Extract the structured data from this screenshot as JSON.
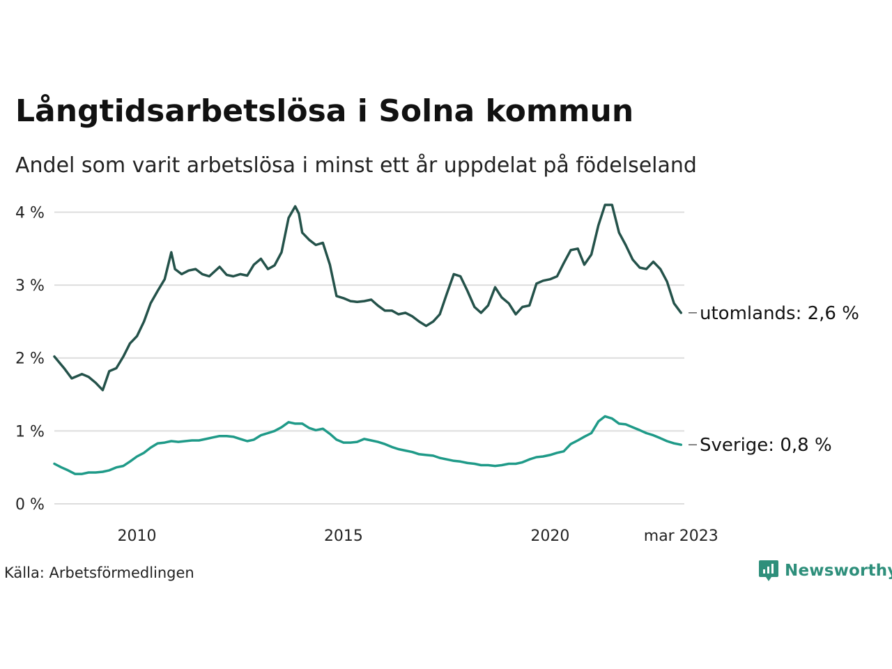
{
  "title": "Långtidsarbetslösa i Solna kommun",
  "subtitle": "Andel som varit arbetslösa i minst ett år uppdelat på födelseland",
  "source": "Källa: Arbetsförmedlingen",
  "brand": "Newsworthy",
  "colors": {
    "dark_series": "#24524a",
    "light_series": "#1f9a88",
    "grid": "#dddddd",
    "brand": "#2e8f7b"
  },
  "chart_data": {
    "type": "line",
    "x_unit": "year",
    "xlim": [
      2008.0,
      2023.25
    ],
    "ylim": [
      0,
      4.1
    ],
    "y_ticks": [
      0,
      1,
      2,
      3,
      4
    ],
    "y_tick_labels": [
      "0 %",
      "1 %",
      "2 %",
      "3 %",
      "4 %"
    ],
    "x_ticks": [
      2010,
      2015,
      2020,
      2023.17
    ],
    "x_tick_labels": [
      "2010",
      "2015",
      "2020",
      "mar 2023"
    ],
    "grid": true,
    "series": [
      {
        "name": "utomlands",
        "end_label": "utomlands: 2,6 %",
        "color": "#24524a",
        "points": [
          [
            2008.0,
            2.02
          ],
          [
            2008.25,
            1.85
          ],
          [
            2008.42,
            1.72
          ],
          [
            2008.67,
            1.78
          ],
          [
            2008.83,
            1.74
          ],
          [
            2009.0,
            1.66
          ],
          [
            2009.17,
            1.56
          ],
          [
            2009.33,
            1.82
          ],
          [
            2009.5,
            1.86
          ],
          [
            2009.67,
            2.02
          ],
          [
            2009.83,
            2.2
          ],
          [
            2010.0,
            2.3
          ],
          [
            2010.17,
            2.5
          ],
          [
            2010.33,
            2.75
          ],
          [
            2010.5,
            2.92
          ],
          [
            2010.67,
            3.08
          ],
          [
            2010.83,
            3.45
          ],
          [
            2010.92,
            3.22
          ],
          [
            2011.08,
            3.15
          ],
          [
            2011.25,
            3.2
          ],
          [
            2011.42,
            3.22
          ],
          [
            2011.58,
            3.15
          ],
          [
            2011.75,
            3.12
          ],
          [
            2012.0,
            3.25
          ],
          [
            2012.17,
            3.14
          ],
          [
            2012.33,
            3.12
          ],
          [
            2012.5,
            3.15
          ],
          [
            2012.67,
            3.13
          ],
          [
            2012.83,
            3.28
          ],
          [
            2013.0,
            3.36
          ],
          [
            2013.17,
            3.22
          ],
          [
            2013.33,
            3.27
          ],
          [
            2013.5,
            3.45
          ],
          [
            2013.67,
            3.92
          ],
          [
            2013.83,
            4.08
          ],
          [
            2013.92,
            3.98
          ],
          [
            2014.0,
            3.72
          ],
          [
            2014.17,
            3.62
          ],
          [
            2014.33,
            3.55
          ],
          [
            2014.5,
            3.58
          ],
          [
            2014.67,
            3.28
          ],
          [
            2014.83,
            2.85
          ],
          [
            2015.0,
            2.82
          ],
          [
            2015.17,
            2.78
          ],
          [
            2015.33,
            2.77
          ],
          [
            2015.5,
            2.78
          ],
          [
            2015.67,
            2.8
          ],
          [
            2015.83,
            2.72
          ],
          [
            2016.0,
            2.65
          ],
          [
            2016.17,
            2.65
          ],
          [
            2016.33,
            2.6
          ],
          [
            2016.5,
            2.62
          ],
          [
            2016.67,
            2.57
          ],
          [
            2016.83,
            2.5
          ],
          [
            2017.0,
            2.44
          ],
          [
            2017.17,
            2.5
          ],
          [
            2017.33,
            2.6
          ],
          [
            2017.5,
            2.88
          ],
          [
            2017.67,
            3.15
          ],
          [
            2017.83,
            3.12
          ],
          [
            2018.0,
            2.92
          ],
          [
            2018.17,
            2.7
          ],
          [
            2018.33,
            2.62
          ],
          [
            2018.5,
            2.72
          ],
          [
            2018.67,
            2.97
          ],
          [
            2018.83,
            2.83
          ],
          [
            2019.0,
            2.75
          ],
          [
            2019.17,
            2.6
          ],
          [
            2019.33,
            2.7
          ],
          [
            2019.5,
            2.72
          ],
          [
            2019.67,
            3.02
          ],
          [
            2019.83,
            3.06
          ],
          [
            2020.0,
            3.08
          ],
          [
            2020.17,
            3.12
          ],
          [
            2020.33,
            3.3
          ],
          [
            2020.5,
            3.48
          ],
          [
            2020.67,
            3.5
          ],
          [
            2020.83,
            3.28
          ],
          [
            2021.0,
            3.42
          ],
          [
            2021.17,
            3.82
          ],
          [
            2021.33,
            4.1
          ],
          [
            2021.5,
            4.1
          ],
          [
            2021.67,
            3.72
          ],
          [
            2021.83,
            3.55
          ],
          [
            2022.0,
            3.35
          ],
          [
            2022.17,
            3.24
          ],
          [
            2022.33,
            3.22
          ],
          [
            2022.5,
            3.32
          ],
          [
            2022.67,
            3.22
          ],
          [
            2022.83,
            3.05
          ],
          [
            2023.0,
            2.75
          ],
          [
            2023.17,
            2.62
          ]
        ]
      },
      {
        "name": "Sverige",
        "end_label": "Sverige: 0,8 %",
        "color": "#1f9a88",
        "points": [
          [
            2008.0,
            0.55
          ],
          [
            2008.17,
            0.5
          ],
          [
            2008.33,
            0.46
          ],
          [
            2008.5,
            0.41
          ],
          [
            2008.67,
            0.41
          ],
          [
            2008.83,
            0.43
          ],
          [
            2009.0,
            0.43
          ],
          [
            2009.17,
            0.44
          ],
          [
            2009.33,
            0.46
          ],
          [
            2009.5,
            0.5
          ],
          [
            2009.67,
            0.52
          ],
          [
            2009.83,
            0.58
          ],
          [
            2010.0,
            0.65
          ],
          [
            2010.17,
            0.7
          ],
          [
            2010.33,
            0.77
          ],
          [
            2010.5,
            0.83
          ],
          [
            2010.67,
            0.84
          ],
          [
            2010.83,
            0.86
          ],
          [
            2011.0,
            0.85
          ],
          [
            2011.17,
            0.86
          ],
          [
            2011.33,
            0.87
          ],
          [
            2011.5,
            0.87
          ],
          [
            2011.67,
            0.89
          ],
          [
            2011.83,
            0.91
          ],
          [
            2012.0,
            0.93
          ],
          [
            2012.17,
            0.93
          ],
          [
            2012.33,
            0.92
          ],
          [
            2012.5,
            0.89
          ],
          [
            2012.67,
            0.86
          ],
          [
            2012.83,
            0.88
          ],
          [
            2013.0,
            0.94
          ],
          [
            2013.17,
            0.97
          ],
          [
            2013.33,
            1.0
          ],
          [
            2013.5,
            1.05
          ],
          [
            2013.67,
            1.12
          ],
          [
            2013.83,
            1.1
          ],
          [
            2014.0,
            1.1
          ],
          [
            2014.17,
            1.04
          ],
          [
            2014.33,
            1.01
          ],
          [
            2014.5,
            1.03
          ],
          [
            2014.67,
            0.96
          ],
          [
            2014.83,
            0.88
          ],
          [
            2015.0,
            0.84
          ],
          [
            2015.17,
            0.84
          ],
          [
            2015.33,
            0.85
          ],
          [
            2015.5,
            0.89
          ],
          [
            2015.67,
            0.87
          ],
          [
            2015.83,
            0.85
          ],
          [
            2016.0,
            0.82
          ],
          [
            2016.17,
            0.78
          ],
          [
            2016.33,
            0.75
          ],
          [
            2016.5,
            0.73
          ],
          [
            2016.67,
            0.71
          ],
          [
            2016.83,
            0.68
          ],
          [
            2017.0,
            0.67
          ],
          [
            2017.17,
            0.66
          ],
          [
            2017.33,
            0.63
          ],
          [
            2017.5,
            0.61
          ],
          [
            2017.67,
            0.59
          ],
          [
            2017.83,
            0.58
          ],
          [
            2018.0,
            0.56
          ],
          [
            2018.17,
            0.55
          ],
          [
            2018.33,
            0.53
          ],
          [
            2018.5,
            0.53
          ],
          [
            2018.67,
            0.52
          ],
          [
            2018.83,
            0.53
          ],
          [
            2019.0,
            0.55
          ],
          [
            2019.17,
            0.55
          ],
          [
            2019.33,
            0.57
          ],
          [
            2019.5,
            0.61
          ],
          [
            2019.67,
            0.64
          ],
          [
            2019.83,
            0.65
          ],
          [
            2020.0,
            0.67
          ],
          [
            2020.17,
            0.7
          ],
          [
            2020.33,
            0.72
          ],
          [
            2020.5,
            0.82
          ],
          [
            2020.67,
            0.87
          ],
          [
            2020.83,
            0.92
          ],
          [
            2021.0,
            0.97
          ],
          [
            2021.17,
            1.13
          ],
          [
            2021.33,
            1.2
          ],
          [
            2021.5,
            1.17
          ],
          [
            2021.67,
            1.1
          ],
          [
            2021.83,
            1.09
          ],
          [
            2022.0,
            1.05
          ],
          [
            2022.17,
            1.01
          ],
          [
            2022.33,
            0.97
          ],
          [
            2022.5,
            0.94
          ],
          [
            2022.67,
            0.9
          ],
          [
            2022.83,
            0.86
          ],
          [
            2023.0,
            0.83
          ],
          [
            2023.17,
            0.81
          ]
        ]
      }
    ]
  }
}
